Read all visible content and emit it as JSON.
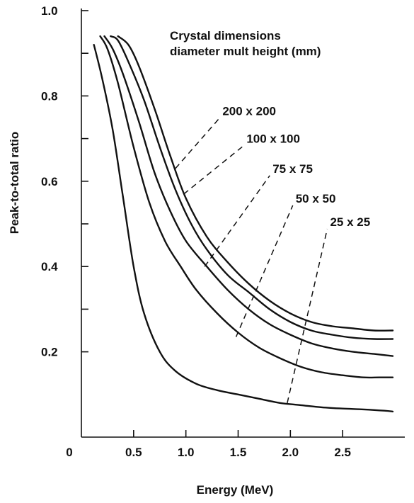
{
  "chart_data": {
    "type": "line",
    "xlabel": "Energy (MeV)",
    "ylabel": "Peak-to-total ratio",
    "xlim": [
      0,
      3.0
    ],
    "ylim": [
      0,
      1.0
    ],
    "x_ticks": [
      {
        "value": 0,
        "label": "0"
      },
      {
        "value": 0.5,
        "label": "0.5"
      },
      {
        "value": 1.0,
        "label": "1.0"
      },
      {
        "value": 1.5,
        "label": "1.5"
      },
      {
        "value": 2.0,
        "label": "2.0"
      },
      {
        "value": 2.5,
        "label": "2.5"
      }
    ],
    "y_ticks": [
      {
        "value": 0.2,
        "label": "0.2"
      },
      {
        "value": 0.3,
        "label": ""
      },
      {
        "value": 0.4,
        "label": "0.4"
      },
      {
        "value": 0.5,
        "label": ""
      },
      {
        "value": 0.6,
        "label": "0.6"
      },
      {
        "value": 0.7,
        "label": ""
      },
      {
        "value": 0.8,
        "label": "0.8"
      },
      {
        "value": 0.9,
        "label": ""
      },
      {
        "value": 1.0,
        "label": "1.0"
      }
    ],
    "grid": false,
    "legend_title_lines": [
      "Crystal dimensions",
      "diameter mult height (mm)"
    ],
    "series": [
      {
        "name": "200 x 200",
        "x": [
          0.35,
          0.45,
          0.55,
          0.7,
          0.85,
          1.0,
          1.2,
          1.4,
          1.6,
          1.8,
          2.0,
          2.2,
          2.4,
          2.6,
          2.8,
          2.98
        ],
        "y": [
          0.94,
          0.92,
          0.87,
          0.77,
          0.66,
          0.56,
          0.47,
          0.41,
          0.36,
          0.32,
          0.29,
          0.27,
          0.26,
          0.255,
          0.25,
          0.25
        ]
      },
      {
        "name": "100 x 100",
        "x": [
          0.28,
          0.35,
          0.45,
          0.6,
          0.75,
          0.9,
          1.05,
          1.2,
          1.4,
          1.6,
          1.8,
          2.0,
          2.2,
          2.4,
          2.6,
          2.8,
          2.98
        ],
        "y": [
          0.94,
          0.93,
          0.88,
          0.79,
          0.68,
          0.58,
          0.5,
          0.44,
          0.38,
          0.34,
          0.3,
          0.27,
          0.25,
          0.24,
          0.233,
          0.23,
          0.23
        ]
      },
      {
        "name": "75 x 75",
        "x": [
          0.22,
          0.3,
          0.4,
          0.55,
          0.7,
          0.85,
          1.0,
          1.2,
          1.4,
          1.6,
          1.8,
          2.0,
          2.2,
          2.4,
          2.6,
          2.8,
          2.98
        ],
        "y": [
          0.94,
          0.91,
          0.85,
          0.74,
          0.62,
          0.53,
          0.46,
          0.4,
          0.345,
          0.3,
          0.265,
          0.24,
          0.22,
          0.208,
          0.2,
          0.195,
          0.19
        ]
      },
      {
        "name": "50 x 50",
        "x": [
          0.18,
          0.25,
          0.35,
          0.5,
          0.65,
          0.8,
          0.95,
          1.1,
          1.3,
          1.5,
          1.7,
          1.9,
          2.1,
          2.3,
          2.5,
          2.7,
          2.85,
          2.98
        ],
        "y": [
          0.94,
          0.91,
          0.83,
          0.68,
          0.55,
          0.46,
          0.4,
          0.345,
          0.29,
          0.245,
          0.21,
          0.185,
          0.165,
          0.152,
          0.145,
          0.14,
          0.14,
          0.14
        ]
      },
      {
        "name": "25 x 25",
        "x": [
          0.12,
          0.2,
          0.3,
          0.4,
          0.5,
          0.6,
          0.75,
          0.9,
          1.1,
          1.3,
          1.5,
          1.7,
          1.9,
          2.1,
          2.3,
          2.5,
          2.7,
          2.9,
          2.98
        ],
        "y": [
          0.92,
          0.84,
          0.72,
          0.56,
          0.4,
          0.29,
          0.2,
          0.155,
          0.125,
          0.11,
          0.1,
          0.09,
          0.08,
          0.075,
          0.07,
          0.067,
          0.065,
          0.062,
          0.06
        ]
      }
    ],
    "annotations": [
      {
        "text": "200 x 200",
        "series": "200 x 200",
        "point": [
          0.9,
          0.63
        ],
        "label_at": [
          1.35,
          0.755
        ]
      },
      {
        "text": "100 x 100",
        "series": "100 x 100",
        "point": [
          0.98,
          0.57
        ],
        "label_at": [
          1.58,
          0.69
        ]
      },
      {
        "text": "75 x 75",
        "series": "75 x 75",
        "point": [
          1.18,
          0.4
        ],
        "label_at": [
          1.83,
          0.62
        ]
      },
      {
        "text": "50 x 50",
        "series": "50 x 50",
        "point": [
          1.48,
          0.235
        ],
        "label_at": [
          2.05,
          0.55
        ]
      },
      {
        "text": "25 x 25",
        "series": "25 x 25",
        "point": [
          1.97,
          0.08
        ],
        "label_at": [
          2.38,
          0.495
        ]
      }
    ]
  }
}
